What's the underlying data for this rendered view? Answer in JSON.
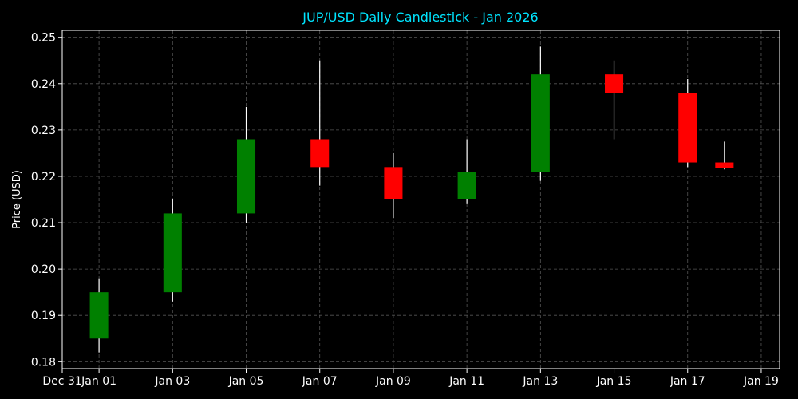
{
  "chart_data": {
    "type": "candlestick",
    "title": "JUP/USD Daily Candlestick - Jan 2026",
    "xlabel": "",
    "ylabel": "Price (USD)",
    "ylim": [
      0.1785,
      0.2515
    ],
    "xlim": [
      "2025-12-31 00:00",
      "2026-01-19 12:00"
    ],
    "grid": true,
    "y_ticks": [
      0.18,
      0.19,
      0.2,
      0.21,
      0.22,
      0.23,
      0.24,
      0.25
    ],
    "y_tick_labels": [
      "0.18",
      "0.19",
      "0.20",
      "0.21",
      "0.22",
      "0.23",
      "0.24",
      "0.25"
    ],
    "x_ticks": [
      "2025-12-31",
      "2026-01-01",
      "2026-01-03",
      "2026-01-05",
      "2026-01-07",
      "2026-01-09",
      "2026-01-11",
      "2026-01-13",
      "2026-01-15",
      "2026-01-17",
      "2026-01-19"
    ],
    "x_tick_labels": [
      "Dec 31",
      "Jan 01",
      "Jan 03",
      "Jan 05",
      "Jan 07",
      "Jan 09",
      "Jan 11",
      "Jan 13",
      "Jan 15",
      "Jan 17",
      "Jan 19"
    ],
    "colors": {
      "up": "#008000",
      "down": "#ff0000",
      "wick": "#ffffff",
      "grid": "#555555",
      "title": "#00e5ff",
      "background": "#000000"
    },
    "candles": [
      {
        "date": "2026-01-01",
        "open": 0.185,
        "high": 0.198,
        "low": 0.182,
        "close": 0.195
      },
      {
        "date": "2026-01-03",
        "open": 0.195,
        "high": 0.215,
        "low": 0.193,
        "close": 0.212
      },
      {
        "date": "2026-01-05",
        "open": 0.212,
        "high": 0.235,
        "low": 0.21,
        "close": 0.228
      },
      {
        "date": "2026-01-07",
        "open": 0.228,
        "high": 0.245,
        "low": 0.218,
        "close": 0.222
      },
      {
        "date": "2026-01-09",
        "open": 0.222,
        "high": 0.225,
        "low": 0.211,
        "close": 0.215
      },
      {
        "date": "2026-01-11",
        "open": 0.215,
        "high": 0.228,
        "low": 0.214,
        "close": 0.221
      },
      {
        "date": "2026-01-13",
        "open": 0.221,
        "high": 0.248,
        "low": 0.219,
        "close": 0.242
      },
      {
        "date": "2026-01-15",
        "open": 0.242,
        "high": 0.245,
        "low": 0.228,
        "close": 0.238
      },
      {
        "date": "2026-01-17",
        "open": 0.238,
        "high": 0.241,
        "low": 0.222,
        "close": 0.223
      },
      {
        "date": "2026-01-18",
        "open": 0.223,
        "high": 0.2275,
        "low": 0.2215,
        "close": 0.2218
      }
    ]
  }
}
